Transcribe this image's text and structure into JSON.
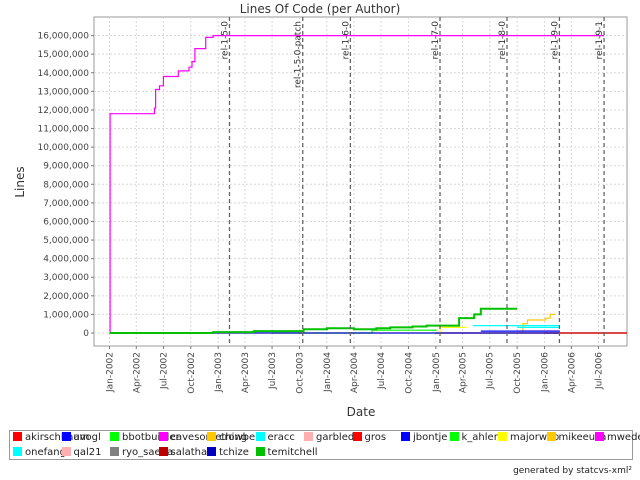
{
  "chart_data": {
    "type": "line",
    "title": "Lines Of Code (per Author)",
    "xlabel": "Date",
    "ylabel": "Lines",
    "x_range": [
      "2001-11-10",
      "2006-10-05"
    ],
    "ylim": [
      -700000,
      17000000
    ],
    "x_ticks": [
      {
        "date": "2002-01-01",
        "label": "Jan-2002"
      },
      {
        "date": "2002-04-01",
        "label": "Apr-2002"
      },
      {
        "date": "2002-07-01",
        "label": "Jul-2002"
      },
      {
        "date": "2002-10-01",
        "label": "Oct-2002"
      },
      {
        "date": "2003-01-01",
        "label": "Jan-2003"
      },
      {
        "date": "2003-04-01",
        "label": "Apr-2003"
      },
      {
        "date": "2003-07-01",
        "label": "Jul-2003"
      },
      {
        "date": "2003-10-01",
        "label": "Oct-2003"
      },
      {
        "date": "2004-01-01",
        "label": "Jan-2004"
      },
      {
        "date": "2004-04-01",
        "label": "Apr-2004"
      },
      {
        "date": "2004-07-01",
        "label": "Jul-2004"
      },
      {
        "date": "2004-10-01",
        "label": "Oct-2004"
      },
      {
        "date": "2005-01-01",
        "label": "Jan-2005"
      },
      {
        "date": "2005-04-01",
        "label": "Apr-2005"
      },
      {
        "date": "2005-07-01",
        "label": "Jul-2005"
      },
      {
        "date": "2005-10-01",
        "label": "Oct-2005"
      },
      {
        "date": "2006-01-01",
        "label": "Jan-2006"
      },
      {
        "date": "2006-04-01",
        "label": "Apr-2006"
      },
      {
        "date": "2006-07-01",
        "label": "Jul-2006"
      }
    ],
    "y_ticks": [
      {
        "value": 0,
        "label": "0"
      },
      {
        "value": 1000000,
        "label": "1,000,000"
      },
      {
        "value": 2000000,
        "label": "2,000,000"
      },
      {
        "value": 3000000,
        "label": "3,000,000"
      },
      {
        "value": 4000000,
        "label": "4,000,000"
      },
      {
        "value": 5000000,
        "label": "5,000,000"
      },
      {
        "value": 6000000,
        "label": "6,000,000"
      },
      {
        "value": 7000000,
        "label": "7,000,000"
      },
      {
        "value": 8000000,
        "label": "8,000,000"
      },
      {
        "value": 9000000,
        "label": "9,000,000"
      },
      {
        "value": 10000000,
        "label": "10,000,000"
      },
      {
        "value": 11000000,
        "label": "11,000,000"
      },
      {
        "value": 12000000,
        "label": "12,000,000"
      },
      {
        "value": 13000000,
        "label": "13,000,000"
      },
      {
        "value": 14000000,
        "label": "14,000,000"
      },
      {
        "value": 15000000,
        "label": "15,000,000"
      },
      {
        "value": 16000000,
        "label": "16,000,000"
      }
    ],
    "grid": true,
    "legend_position": "bottom",
    "markers": [
      {
        "label": "rel-1-5-0",
        "date": "2003-02-08"
      },
      {
        "label": "rel-1-5-0-patch",
        "date": "2003-10-12"
      },
      {
        "label": "rel-1-6-0",
        "date": "2004-03-20"
      },
      {
        "label": "rel-1-7-0",
        "date": "2005-01-15"
      },
      {
        "label": "rel-1-8-0",
        "date": "2005-08-28"
      },
      {
        "label": "rel-1-9-0",
        "date": "2006-02-20"
      },
      {
        "label": "rel-1-9-1",
        "date": "2006-07-20"
      }
    ],
    "series": [
      {
        "name": "akirschbaum",
        "color": "#ff0000",
        "step": true,
        "points": []
      },
      {
        "name": "avogl",
        "color": "#0000ff",
        "step": true,
        "points": []
      },
      {
        "name": "bbotbuilder",
        "color": "#00ff00",
        "step": true,
        "points": []
      },
      {
        "name": "cavesomething",
        "color": "#ff00ff",
        "step": true,
        "points": []
      },
      {
        "name": "crowbert",
        "color": "#ffc800",
        "step": true,
        "points": [
          [
            "2005-10-10",
            0
          ],
          [
            "2005-10-20",
            500000
          ],
          [
            "2005-11-05",
            700000
          ],
          [
            "2006-01-05",
            800000
          ],
          [
            "2006-01-20",
            1000000
          ],
          [
            "2006-02-05",
            1000000
          ]
        ]
      },
      {
        "name": "eracc",
        "color": "#00ffff",
        "step": true,
        "points": [
          [
            "2005-05-05",
            400000
          ],
          [
            "2006-02-20",
            400000
          ]
        ]
      },
      {
        "name": "garbled",
        "color": "#ffafaf",
        "step": true,
        "points": [
          [
            "2005-10-01",
            120000
          ],
          [
            "2006-02-20",
            150000
          ]
        ]
      },
      {
        "name": "gros",
        "color": "#ff0000",
        "step": true,
        "points": [
          [
            "2006-01-01",
            0
          ],
          [
            "2006-10-05",
            0
          ]
        ]
      },
      {
        "name": "jbontje",
        "color": "#0000ff",
        "step": true,
        "points": [
          [
            "2005-06-01",
            100000
          ],
          [
            "2006-02-20",
            120000
          ]
        ]
      },
      {
        "name": "k_ahlers",
        "color": "#00ff00",
        "step": true,
        "points": [
          [
            "2003-07-01",
            0
          ],
          [
            "2004-06-01",
            150000
          ],
          [
            "2005-01-01",
            200000
          ]
        ]
      },
      {
        "name": "majorwoo",
        "color": "#ffff00",
        "step": true,
        "points": [
          [
            "2005-01-01",
            0
          ],
          [
            "2005-01-15",
            300000
          ],
          [
            "2005-04-15",
            300000
          ]
        ]
      },
      {
        "name": "mikeeusa",
        "color": "#ffc800",
        "step": true,
        "points": []
      },
      {
        "name": "mwedel",
        "color": "#ff00ff",
        "step": true,
        "points": [
          [
            "2002-01-01",
            0
          ],
          [
            "2002-01-03",
            11800000
          ],
          [
            "2002-05-28",
            11800000
          ],
          [
            "2002-06-01",
            12100000
          ],
          [
            "2002-06-05",
            13100000
          ],
          [
            "2002-06-18",
            13300000
          ],
          [
            "2002-07-01",
            13800000
          ],
          [
            "2002-08-20",
            14100000
          ],
          [
            "2002-09-25",
            14300000
          ],
          [
            "2002-10-05",
            14600000
          ],
          [
            "2002-10-15",
            15300000
          ],
          [
            "2002-11-20",
            15900000
          ],
          [
            "2002-12-15",
            16000000
          ],
          [
            "2003-10-01",
            16000000
          ],
          [
            "2006-07-20",
            16000000
          ]
        ]
      },
      {
        "name": "onefang",
        "color": "#00ffff",
        "step": true,
        "points": [
          [
            "2005-10-01",
            300000
          ],
          [
            "2006-02-20",
            320000
          ]
        ]
      },
      {
        "name": "qal21",
        "color": "#ffafaf",
        "step": true,
        "points": []
      },
      {
        "name": "ryo_saeba",
        "color": "#808080",
        "step": true,
        "points": []
      },
      {
        "name": "salathar",
        "color": "#c00000",
        "step": true,
        "points": [
          [
            "2005-01-01",
            0
          ],
          [
            "2006-10-05",
            0
          ]
        ]
      },
      {
        "name": "tchize",
        "color": "#0000c0",
        "step": true,
        "points": [
          [
            "2002-01-01",
            0
          ],
          [
            "2006-02-20",
            0
          ]
        ]
      },
      {
        "name": "temitchell",
        "color": "#00c000",
        "step": true,
        "points": [
          [
            "2002-01-01",
            0
          ],
          [
            "2002-12-15",
            50000
          ],
          [
            "2003-05-01",
            100000
          ],
          [
            "2003-10-15",
            200000
          ],
          [
            "2004-01-01",
            250000
          ],
          [
            "2004-04-01",
            200000
          ],
          [
            "2004-06-15",
            250000
          ],
          [
            "2004-08-01",
            300000
          ],
          [
            "2004-10-15",
            350000
          ],
          [
            "2004-12-01",
            400000
          ],
          [
            "2005-03-20",
            800000
          ],
          [
            "2005-05-10",
            1000000
          ],
          [
            "2005-06-01",
            1300000
          ],
          [
            "2005-10-01",
            1300000
          ]
        ]
      }
    ]
  },
  "legend": {
    "items": [
      {
        "label": "akirschbaum",
        "color": "#ff0000"
      },
      {
        "label": "avogl",
        "color": "#0000ff"
      },
      {
        "label": "bbotbuilder",
        "color": "#00ff00"
      },
      {
        "label": "cavesomething",
        "color": "#ff00ff"
      },
      {
        "label": "crowbert",
        "color": "#ffc800"
      },
      {
        "label": "eracc",
        "color": "#00ffff"
      },
      {
        "label": "garbled",
        "color": "#ffafaf"
      },
      {
        "label": "gros",
        "color": "#ff0000"
      },
      {
        "label": "jbontje",
        "color": "#0000ff"
      },
      {
        "label": "k_ahlers",
        "color": "#00ff00"
      },
      {
        "label": "majorwoo",
        "color": "#ffff00"
      },
      {
        "label": "mikeeusa",
        "color": "#ffc800"
      },
      {
        "label": "mwedel",
        "color": "#ff00ff"
      },
      {
        "label": "onefang",
        "color": "#00ffff"
      },
      {
        "label": "qal21",
        "color": "#ffafaf"
      },
      {
        "label": "ryo_saeba",
        "color": "#808080"
      },
      {
        "label": "salathar",
        "color": "#c00000"
      },
      {
        "label": "tchize",
        "color": "#0000c0"
      },
      {
        "label": "temitchell",
        "color": "#00c000"
      }
    ]
  },
  "footer": {
    "text": "generated by statcvs-xml²"
  }
}
